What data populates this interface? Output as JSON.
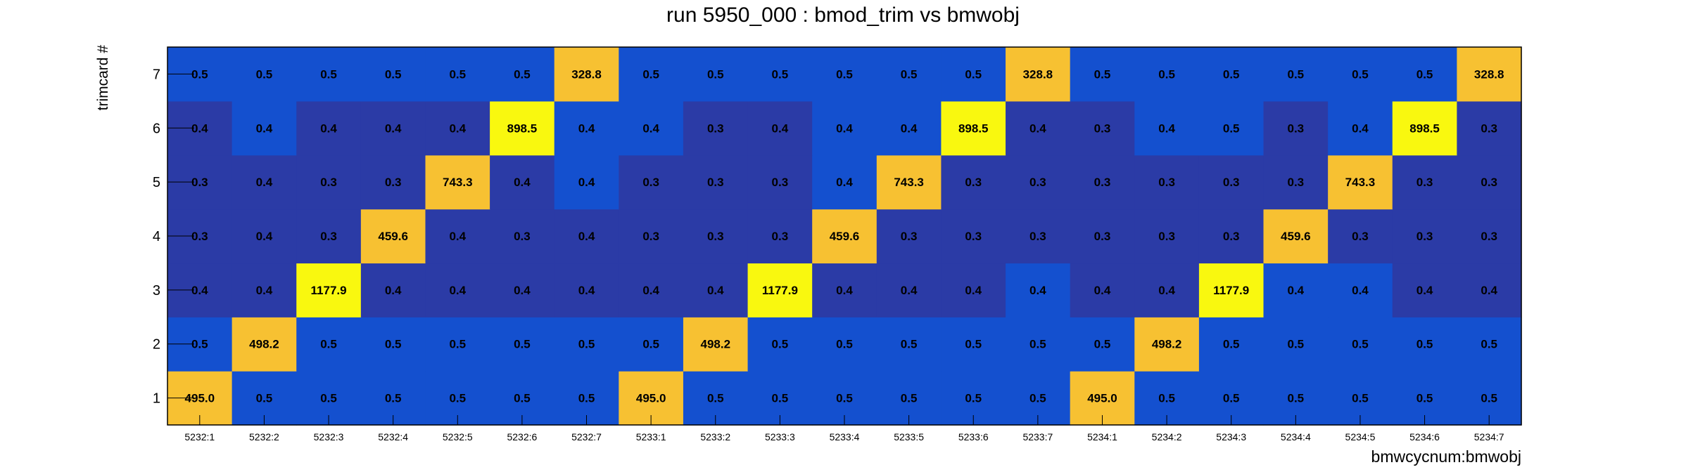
{
  "chart_data": {
    "type": "heatmap",
    "title": "run 5950_000 : bmod_trim vs bmwobj",
    "xlabel": "bmwcycnum:bmwobj",
    "ylabel": "trimcard #",
    "x_categories": [
      "5232:1",
      "5232:2",
      "5232:3",
      "5232:4",
      "5232:5",
      "5232:6",
      "5232:7",
      "5233:1",
      "5233:2",
      "5233:3",
      "5233:4",
      "5233:5",
      "5233:6",
      "5233:7",
      "5234:1",
      "5234:2",
      "5234:3",
      "5234:4",
      "5234:5",
      "5234:6",
      "5234:7"
    ],
    "y_categories": [
      "1",
      "2",
      "3",
      "4",
      "5",
      "6",
      "7"
    ],
    "values": [
      [
        "495.0",
        "0.5",
        "0.5",
        "0.5",
        "0.5",
        "0.5",
        "0.5",
        "495.0",
        "0.5",
        "0.5",
        "0.5",
        "0.5",
        "0.5",
        "0.5",
        "495.0",
        "0.5",
        "0.5",
        "0.5",
        "0.5",
        "0.5",
        "0.5"
      ],
      [
        "0.5",
        "498.2",
        "0.5",
        "0.5",
        "0.5",
        "0.5",
        "0.5",
        "0.5",
        "498.2",
        "0.5",
        "0.5",
        "0.5",
        "0.5",
        "0.5",
        "0.5",
        "498.2",
        "0.5",
        "0.5",
        "0.5",
        "0.5",
        "0.5"
      ],
      [
        "0.4",
        "0.4",
        "1177.9",
        "0.4",
        "0.4",
        "0.4",
        "0.4",
        "0.4",
        "0.4",
        "1177.9",
        "0.4",
        "0.4",
        "0.4",
        "0.4",
        "0.4",
        "0.4",
        "1177.9",
        "0.4",
        "0.4",
        "0.4",
        "0.4"
      ],
      [
        "0.3",
        "0.4",
        "0.3",
        "459.6",
        "0.4",
        "0.3",
        "0.4",
        "0.3",
        "0.3",
        "0.3",
        "459.6",
        "0.3",
        "0.3",
        "0.3",
        "0.3",
        "0.3",
        "0.3",
        "459.6",
        "0.3",
        "0.3",
        "0.3"
      ],
      [
        "0.3",
        "0.4",
        "0.3",
        "0.3",
        "743.3",
        "0.4",
        "0.4",
        "0.3",
        "0.3",
        "0.3",
        "0.4",
        "743.3",
        "0.3",
        "0.3",
        "0.3",
        "0.3",
        "0.3",
        "0.3",
        "743.3",
        "0.3",
        "0.3"
      ],
      [
        "0.4",
        "0.4",
        "0.4",
        "0.4",
        "0.4",
        "898.5",
        "0.4",
        "0.4",
        "0.3",
        "0.4",
        "0.4",
        "0.4",
        "898.5",
        "0.4",
        "0.3",
        "0.4",
        "0.5",
        "0.3",
        "0.4",
        "898.5",
        "0.3"
      ],
      [
        "0.5",
        "0.5",
        "0.5",
        "0.5",
        "0.5",
        "0.5",
        "328.8",
        "0.5",
        "0.5",
        "0.5",
        "0.5",
        "0.5",
        "0.5",
        "328.8",
        "0.5",
        "0.5",
        "0.5",
        "0.5",
        "0.5",
        "0.5",
        "328.8"
      ]
    ],
    "colors": {
      "low": "#2b3ba6",
      "mid": "#1450cf",
      "high_orange": "#f7c132",
      "high_yellow": "#f9f80f",
      "text": "#000000"
    },
    "grid": false,
    "legend": "none"
  }
}
